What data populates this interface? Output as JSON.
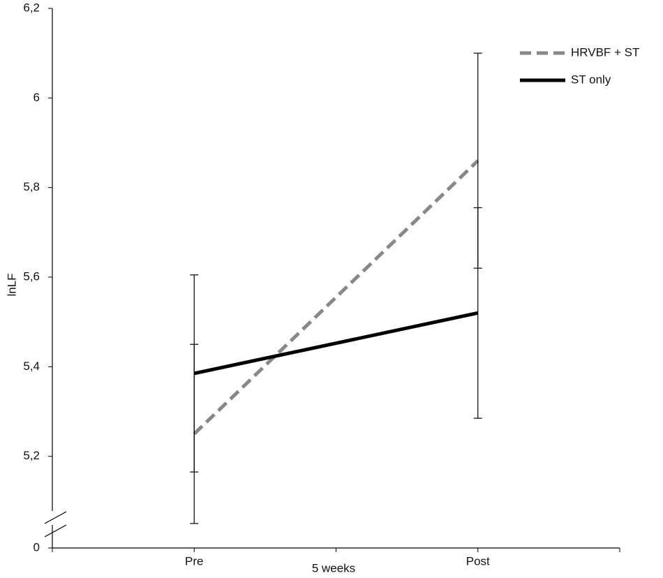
{
  "chart_data": {
    "type": "line",
    "y_label": "lnLF",
    "x_label": "5 weeks",
    "categories": [
      "Pre",
      "Post"
    ],
    "series": [
      {
        "name": "HRVBF + ST",
        "color": "#888888",
        "dash": true,
        "values": [
          5.25,
          5.86
        ],
        "errors": [
          0.2,
          0.24
        ]
      },
      {
        "name": "ST only",
        "color": "#000000",
        "dash": false,
        "values": [
          5.385,
          5.52
        ],
        "errors": [
          0.22,
          0.235
        ]
      }
    ],
    "ylim": [
      0,
      6.2
    ],
    "axis_break": [
      0,
      5.0
    ],
    "yticks": [
      {
        "value": 0,
        "label": "0"
      },
      {
        "value": 5.2,
        "label": "5,2"
      },
      {
        "value": 5.4,
        "label": "5,4"
      },
      {
        "value": 5.6,
        "label": "5,6"
      },
      {
        "value": 5.8,
        "label": "5,8"
      },
      {
        "value": 6,
        "label": "6"
      },
      {
        "value": 6.2,
        "label": "6,2"
      }
    ],
    "legend": "upper right",
    "grid": false
  }
}
